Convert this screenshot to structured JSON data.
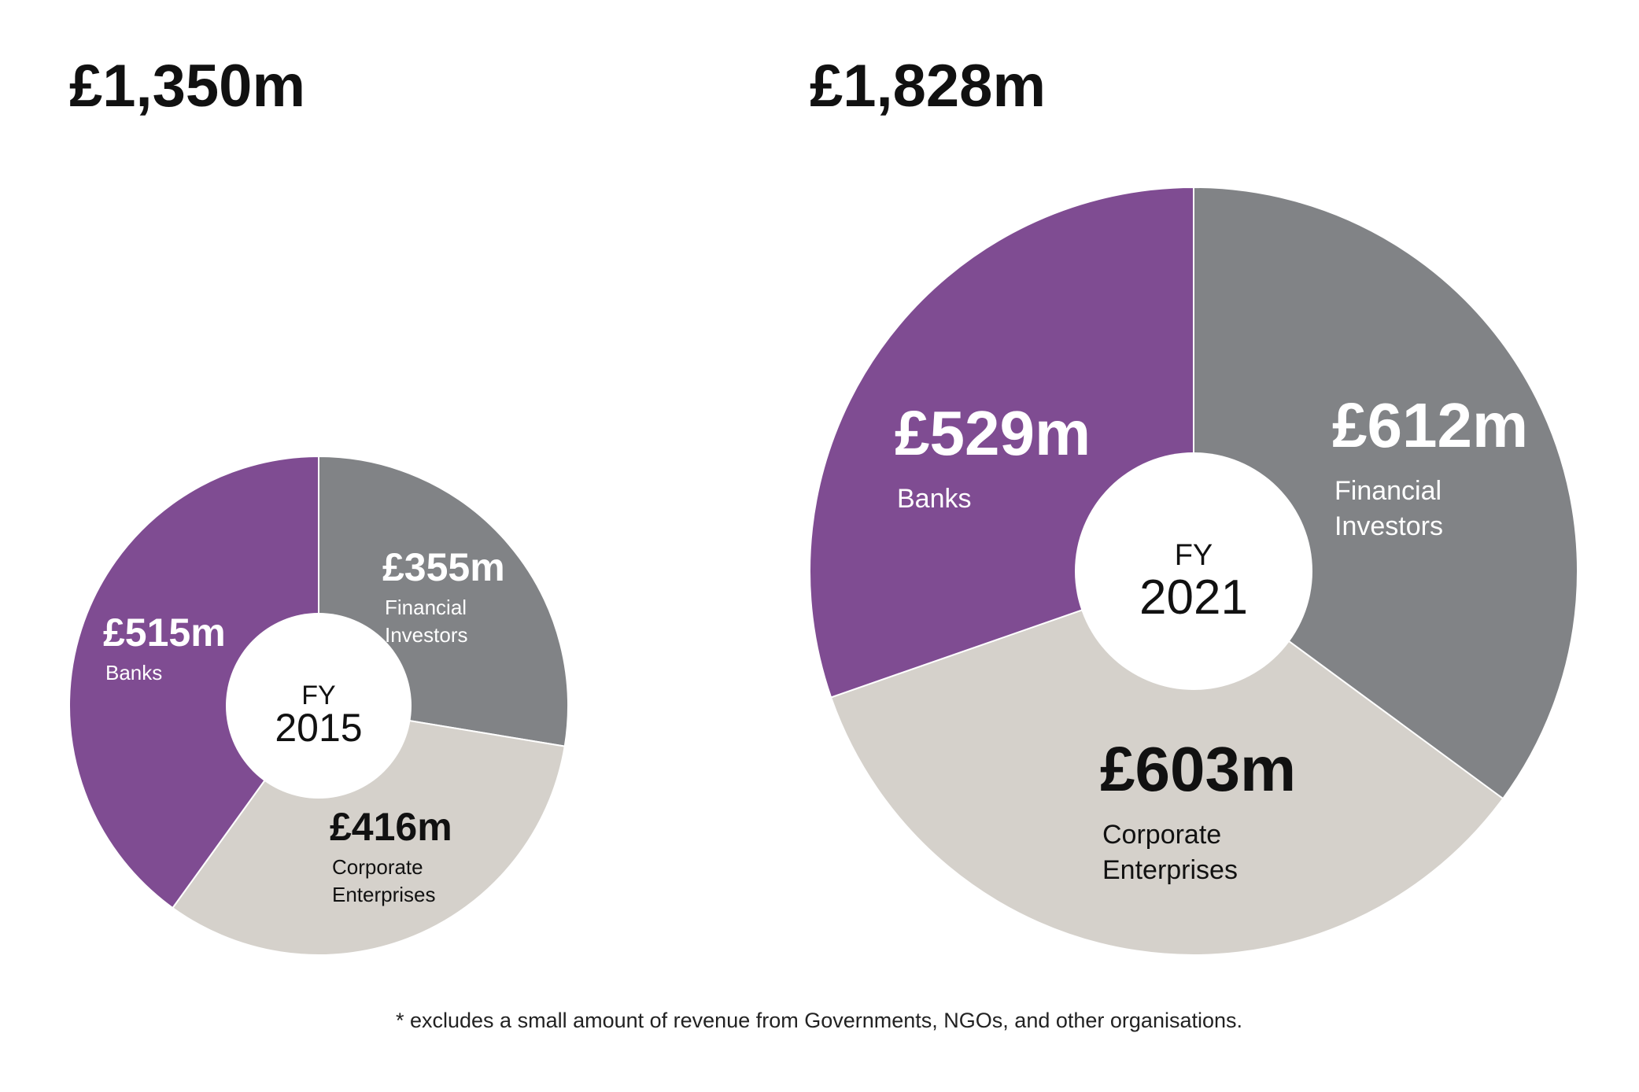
{
  "colors": {
    "banks": "#7F4C92",
    "financial_investors": "#818386",
    "corporate_enterprises": "#D5D1CB",
    "separator": "#ffffff",
    "dark_text": "#111111",
    "light_text": "#ffffff"
  },
  "chart_data": [
    {
      "type": "pie",
      "total_label": "£1,350m",
      "center": {
        "line1": "FY",
        "line2": "2015"
      },
      "slices": [
        {
          "key": "financial_investors",
          "value_label": "£355m",
          "value": 355,
          "label_lines": [
            "Financial",
            "Investors"
          ],
          "color": "#818386",
          "text_color": "#ffffff"
        },
        {
          "key": "corporate_enterprises",
          "value_label": "£416m",
          "value": 416,
          "label_lines": [
            "Corporate",
            "Enterprises"
          ],
          "color": "#D5D1CB",
          "text_color": "#111111"
        },
        {
          "key": "banks",
          "value_label": "£515m",
          "value": 515,
          "label_lines": [
            "Banks"
          ],
          "color": "#7F4C92",
          "text_color": "#ffffff"
        }
      ]
    },
    {
      "type": "pie",
      "total_label": "£1,828m",
      "center": {
        "line1": "FY",
        "line2": "2021"
      },
      "slices": [
        {
          "key": "financial_investors",
          "value_label": "£612m",
          "value": 612,
          "label_lines": [
            "Financial",
            "Investors"
          ],
          "color": "#818386",
          "text_color": "#ffffff"
        },
        {
          "key": "corporate_enterprises",
          "value_label": "£603m",
          "value": 603,
          "label_lines": [
            "Corporate",
            "Enterprises"
          ],
          "color": "#D5D1CB",
          "text_color": "#111111"
        },
        {
          "key": "banks",
          "value_label": "£529m",
          "value": 529,
          "label_lines": [
            "Banks"
          ],
          "color": "#7F4C92",
          "text_color": "#ffffff"
        }
      ]
    }
  ],
  "footnote": "* excludes a small amount of revenue from Governments, NGOs, and other organisations."
}
